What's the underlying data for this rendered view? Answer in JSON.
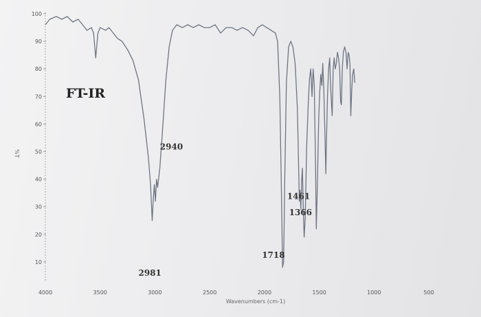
{
  "chart_data": {
    "type": "line",
    "title": "FT-IR",
    "xlabel": "Wavenumbers (cm-1)",
    "ylabel": "%T",
    "xlim": [
      4000,
      400
    ],
    "ylim": [
      0,
      100
    ],
    "x_reversed": true,
    "grid": false,
    "xticks": [
      4000,
      3500,
      3000,
      2500,
      2000,
      1500,
      1000,
      500
    ],
    "yticks": [
      100,
      90,
      80,
      70,
      60,
      50,
      40,
      30,
      20,
      10
    ],
    "series": [
      {
        "points": [
          [
            4000,
            96
          ],
          [
            3960,
            98
          ],
          [
            3900,
            99
          ],
          [
            3850,
            98
          ],
          [
            3800,
            99
          ],
          [
            3750,
            97
          ],
          [
            3700,
            98
          ],
          [
            3660,
            96
          ],
          [
            3620,
            94
          ],
          [
            3580,
            95
          ],
          [
            3560,
            93
          ],
          [
            3540,
            84
          ],
          [
            3520,
            93
          ],
          [
            3500,
            95
          ],
          [
            3450,
            94
          ],
          [
            3420,
            95
          ],
          [
            3380,
            93
          ],
          [
            3340,
            91
          ],
          [
            3300,
            90
          ],
          [
            3250,
            87
          ],
          [
            3200,
            83
          ],
          [
            3150,
            76
          ],
          [
            3100,
            62
          ],
          [
            3060,
            48
          ],
          [
            3040,
            38
          ],
          [
            3025,
            25
          ],
          [
            3015,
            33
          ],
          [
            3005,
            38
          ],
          [
            2995,
            32
          ],
          [
            2985,
            40
          ],
          [
            2975,
            37
          ],
          [
            2955,
            44
          ],
          [
            2930,
            58
          ],
          [
            2900,
            76
          ],
          [
            2870,
            88
          ],
          [
            2840,
            94
          ],
          [
            2800,
            96
          ],
          [
            2750,
            95
          ],
          [
            2700,
            96
          ],
          [
            2650,
            95
          ],
          [
            2600,
            96
          ],
          [
            2550,
            95
          ],
          [
            2500,
            95
          ],
          [
            2450,
            96
          ],
          [
            2400,
            93
          ],
          [
            2350,
            95
          ],
          [
            2300,
            95
          ],
          [
            2250,
            94
          ],
          [
            2200,
            95
          ],
          [
            2150,
            94
          ],
          [
            2100,
            92
          ],
          [
            2060,
            95
          ],
          [
            2020,
            96
          ],
          [
            1980,
            95
          ],
          [
            1940,
            94
          ],
          [
            1900,
            93
          ],
          [
            1880,
            90
          ],
          [
            1860,
            70
          ],
          [
            1845,
            35
          ],
          [
            1835,
            8
          ],
          [
            1825,
            10
          ],
          [
            1815,
            40
          ],
          [
            1800,
            75
          ],
          [
            1780,
            88
          ],
          [
            1760,
            90
          ],
          [
            1740,
            88
          ],
          [
            1720,
            82
          ],
          [
            1700,
            66
          ],
          [
            1690,
            48
          ],
          [
            1682,
            32
          ],
          [
            1675,
            36
          ],
          [
            1668,
            29
          ],
          [
            1660,
            40
          ],
          [
            1654,
            44
          ],
          [
            1646,
            30
          ],
          [
            1638,
            19
          ],
          [
            1628,
            26
          ],
          [
            1615,
            52
          ],
          [
            1600,
            68
          ],
          [
            1590,
            76
          ],
          [
            1578,
            80
          ],
          [
            1566,
            70
          ],
          [
            1556,
            80
          ],
          [
            1545,
            74
          ],
          [
            1534,
            45
          ],
          [
            1527,
            22
          ],
          [
            1518,
            36
          ],
          [
            1505,
            62
          ],
          [
            1495,
            72
          ],
          [
            1486,
            78
          ],
          [
            1476,
            74
          ],
          [
            1468,
            82
          ],
          [
            1458,
            72
          ],
          [
            1448,
            56
          ],
          [
            1440,
            42
          ],
          [
            1434,
            54
          ],
          [
            1425,
            70
          ],
          [
            1415,
            80
          ],
          [
            1405,
            84
          ],
          [
            1395,
            72
          ],
          [
            1382,
            63
          ],
          [
            1373,
            80
          ],
          [
            1364,
            84
          ],
          [
            1354,
            80
          ],
          [
            1344,
            82
          ],
          [
            1334,
            86
          ],
          [
            1324,
            84
          ],
          [
            1314,
            80
          ],
          [
            1305,
            68
          ],
          [
            1298,
            67
          ],
          [
            1290,
            80
          ],
          [
            1280,
            86
          ],
          [
            1268,
            88
          ],
          [
            1256,
            86
          ],
          [
            1246,
            80
          ],
          [
            1236,
            86
          ],
          [
            1228,
            85
          ],
          [
            1220,
            82
          ],
          [
            1212,
            63
          ],
          [
            1204,
            72
          ],
          [
            1195,
            78
          ],
          [
            1185,
            80
          ],
          [
            1175,
            75
          ]
        ]
      }
    ],
    "annotations": [
      {
        "text": "2940",
        "x": 2985,
        "y": 40
      },
      {
        "text": "2981",
        "x": 3025,
        "y": 25
      },
      {
        "text": "1718",
        "x": 1835,
        "y": 8
      },
      {
        "text": "1461",
        "x": 1668,
        "y": 29
      },
      {
        "text": "1366",
        "x": 1638,
        "y": 19
      }
    ]
  }
}
